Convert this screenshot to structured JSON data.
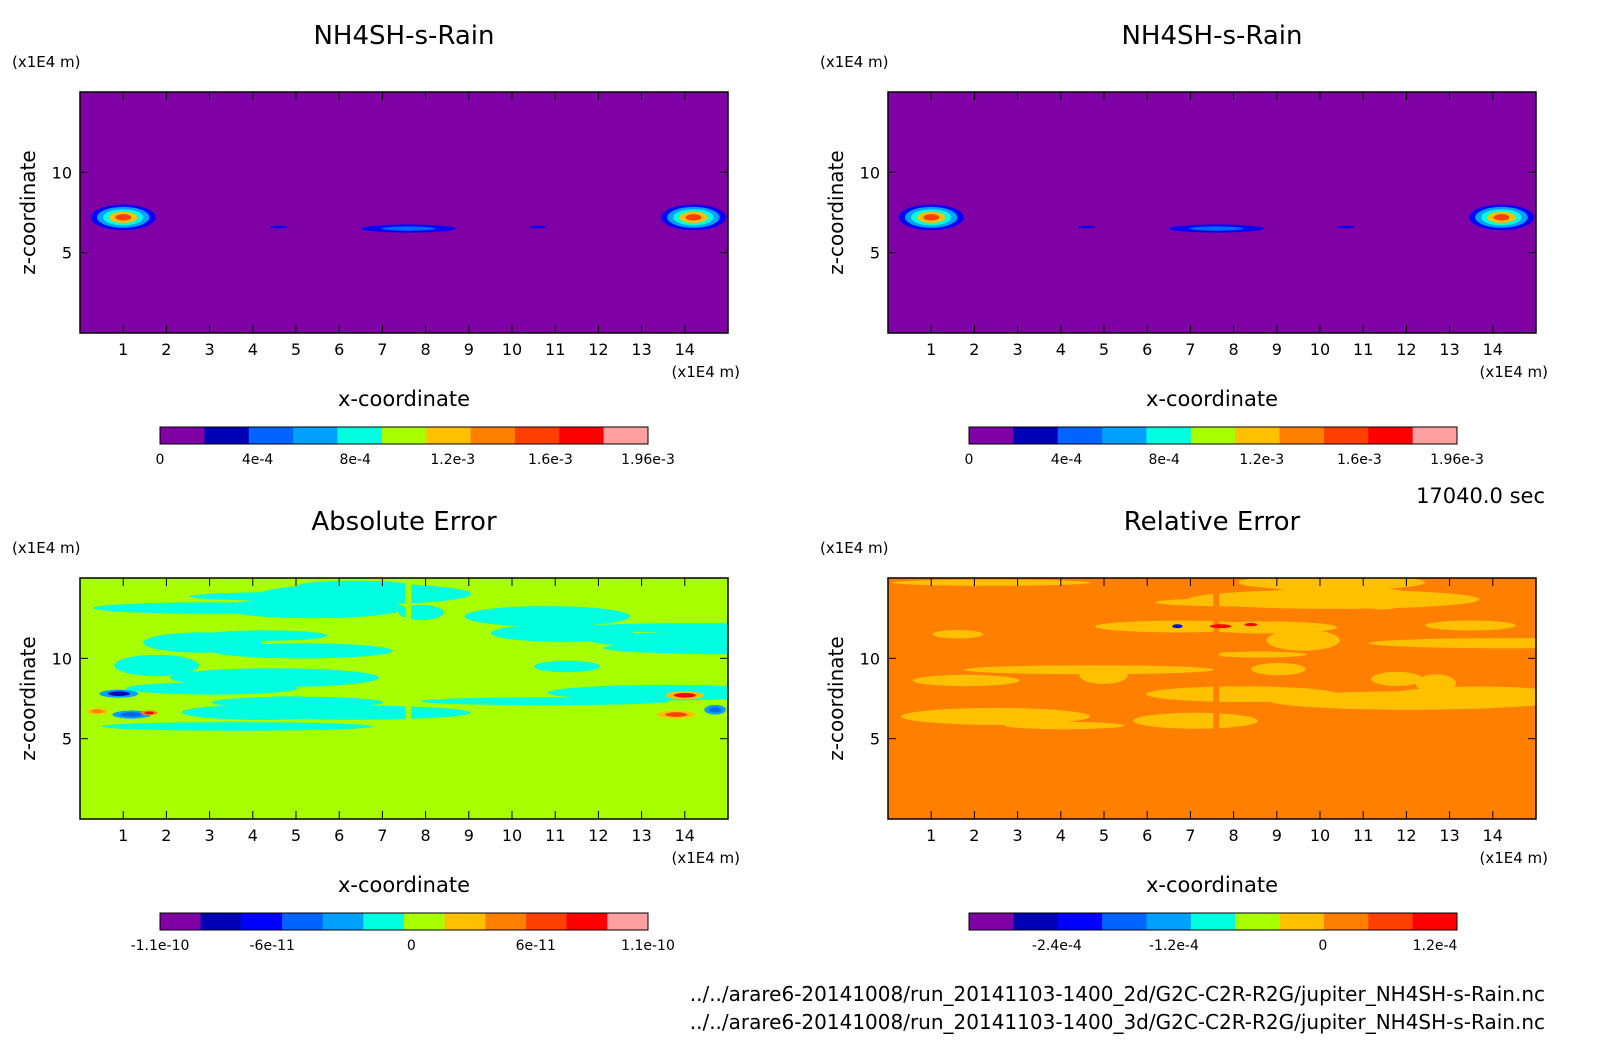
{
  "time_label": "17040.0 sec",
  "footer": {
    "line1": "../../arare6-20141008/run_20141103-1400_2d/G2C-C2R-R2G/jupiter_NH4SH-s-Rain.nc",
    "line2": "../../arare6-20141008/run_20141103-1400_3d/G2C-C2R-R2G/jupiter_NH4SH-s-Rain.nc"
  },
  "colors": {
    "purple": "#7f00a5",
    "navy": "#0000b4",
    "blue": "#0000ff",
    "mid_blue": "#0064ff",
    "sky": "#00a0ff",
    "cyan": "#00ffe0",
    "lime": "#a8ff00",
    "yellow": "#ffc000",
    "orange": "#ff8000",
    "orange_red": "#ff4000",
    "red": "#ff0000",
    "pink": "#ffa0a0"
  },
  "chart_data": [
    {
      "id": "p1",
      "type": "heatmap",
      "title": "NH4SH-s-Rain",
      "xlabel": "x-coordinate",
      "ylabel": "z-coordinate",
      "x_unit": "(x1E4 m)",
      "y_unit": "(x1E4 m)",
      "xlim": [
        0,
        15
      ],
      "ylim": [
        0,
        15
      ],
      "x_ticks": [
        1,
        2,
        3,
        4,
        5,
        6,
        7,
        8,
        9,
        10,
        11,
        12,
        13,
        14
      ],
      "y_ticks": [
        5,
        10
      ],
      "background": "purple",
      "colorbar": {
        "colors": [
          "purple",
          "navy",
          "mid_blue",
          "sky",
          "cyan",
          "lime",
          "yellow",
          "orange",
          "orange_red",
          "red",
          "pink"
        ],
        "ticks": [
          "0",
          "4e-4",
          "8e-4",
          "1.2e-3",
          "1.6e-3",
          "1.96e-3"
        ],
        "tick_pos": [
          0,
          0.2,
          0.4,
          0.6,
          0.8,
          1.0
        ]
      },
      "features": [
        {
          "x": 1.0,
          "z": 7.2,
          "rx": 0.75,
          "rz": 0.8,
          "layers": [
            "blue",
            "sky",
            "cyan",
            "yellow",
            "orange_red"
          ]
        },
        {
          "x": 14.2,
          "z": 7.2,
          "rx": 0.75,
          "rz": 0.8,
          "layers": [
            "blue",
            "sky",
            "cyan",
            "yellow",
            "orange_red"
          ]
        },
        {
          "x": 7.6,
          "z": 6.5,
          "rx": 1.1,
          "rz": 0.25,
          "layers": [
            "blue",
            "mid_blue"
          ]
        },
        {
          "x": 4.6,
          "z": 6.6,
          "rx": 0.2,
          "rz": 0.08,
          "layers": [
            "blue"
          ]
        },
        {
          "x": 10.6,
          "z": 6.6,
          "rx": 0.2,
          "rz": 0.08,
          "layers": [
            "blue"
          ]
        }
      ]
    },
    {
      "id": "p2",
      "type": "heatmap",
      "title": "NH4SH-s-Rain",
      "xlabel": "x-coordinate",
      "ylabel": "z-coordinate",
      "x_unit": "(x1E4 m)",
      "y_unit": "(x1E4 m)",
      "xlim": [
        0,
        15
      ],
      "ylim": [
        0,
        15
      ],
      "x_ticks": [
        1,
        2,
        3,
        4,
        5,
        6,
        7,
        8,
        9,
        10,
        11,
        12,
        13,
        14
      ],
      "y_ticks": [
        5,
        10
      ],
      "background": "purple",
      "colorbar": {
        "colors": [
          "purple",
          "navy",
          "mid_blue",
          "sky",
          "cyan",
          "lime",
          "yellow",
          "orange",
          "orange_red",
          "red",
          "pink"
        ],
        "ticks": [
          "0",
          "4e-4",
          "8e-4",
          "1.2e-3",
          "1.6e-3",
          "1.96e-3"
        ],
        "tick_pos": [
          0,
          0.2,
          0.4,
          0.6,
          0.8,
          1.0
        ]
      },
      "features": [
        {
          "x": 1.0,
          "z": 7.2,
          "rx": 0.75,
          "rz": 0.8,
          "layers": [
            "blue",
            "sky",
            "cyan",
            "yellow",
            "orange_red"
          ]
        },
        {
          "x": 14.2,
          "z": 7.2,
          "rx": 0.75,
          "rz": 0.8,
          "layers": [
            "blue",
            "sky",
            "cyan",
            "yellow",
            "orange_red"
          ]
        },
        {
          "x": 7.6,
          "z": 6.5,
          "rx": 1.1,
          "rz": 0.25,
          "layers": [
            "blue",
            "mid_blue"
          ]
        },
        {
          "x": 4.6,
          "z": 6.6,
          "rx": 0.2,
          "rz": 0.08,
          "layers": [
            "blue"
          ]
        },
        {
          "x": 10.6,
          "z": 6.6,
          "rx": 0.2,
          "rz": 0.08,
          "layers": [
            "blue"
          ]
        }
      ]
    },
    {
      "id": "p3",
      "type": "heatmap",
      "title": "Absolute Error",
      "xlabel": "x-coordinate",
      "ylabel": "z-coordinate",
      "x_unit": "(x1E4 m)",
      "y_unit": "(x1E4 m)",
      "xlim": [
        0,
        15
      ],
      "ylim": [
        0,
        15
      ],
      "x_ticks": [
        1,
        2,
        3,
        4,
        5,
        6,
        7,
        8,
        9,
        10,
        11,
        12,
        13,
        14
      ],
      "y_ticks": [
        5,
        10
      ],
      "background": "lime",
      "band": {
        "z_from": 5.5,
        "z_to": 15,
        "colors": [
          "lime",
          "cyan"
        ]
      },
      "colorbar": {
        "colors": [
          "purple",
          "navy",
          "blue",
          "mid_blue",
          "sky",
          "cyan",
          "lime",
          "yellow",
          "orange",
          "orange_red",
          "red",
          "pink"
        ],
        "ticks": [
          "-1.1e-10",
          "-6e-11",
          "0",
          "6e-11",
          "1.1e-10"
        ],
        "tick_pos": [
          0,
          0.23,
          0.515,
          0.77,
          1.0
        ]
      },
      "features": [
        {
          "x": 0.9,
          "z": 7.8,
          "rx": 0.45,
          "rz": 0.25,
          "layers": [
            "sky",
            "navy"
          ]
        },
        {
          "x": 1.2,
          "z": 6.5,
          "rx": 0.45,
          "rz": 0.25,
          "layers": [
            "sky",
            "mid_blue"
          ]
        },
        {
          "x": 0.4,
          "z": 6.7,
          "rx": 0.25,
          "rz": 0.2,
          "layers": [
            "yellow",
            "orange"
          ]
        },
        {
          "x": 1.6,
          "z": 6.6,
          "rx": 0.2,
          "rz": 0.15,
          "layers": [
            "orange",
            "red"
          ]
        },
        {
          "x": 14.0,
          "z": 7.7,
          "rx": 0.45,
          "rz": 0.25,
          "layers": [
            "yellow",
            "red"
          ]
        },
        {
          "x": 13.8,
          "z": 6.5,
          "rx": 0.45,
          "rz": 0.25,
          "layers": [
            "yellow",
            "orange_red"
          ]
        },
        {
          "x": 14.7,
          "z": 6.8,
          "rx": 0.25,
          "rz": 0.3,
          "layers": [
            "sky",
            "mid_blue"
          ]
        }
      ]
    },
    {
      "id": "p4",
      "type": "heatmap",
      "title": "Relative Error",
      "xlabel": "x-coordinate",
      "ylabel": "z-coordinate",
      "x_unit": "(x1E4 m)",
      "y_unit": "(x1E4 m)",
      "xlim": [
        0,
        15
      ],
      "ylim": [
        0,
        15
      ],
      "x_ticks": [
        1,
        2,
        3,
        4,
        5,
        6,
        7,
        8,
        9,
        10,
        11,
        12,
        13,
        14
      ],
      "y_ticks": [
        5,
        10
      ],
      "background": "orange",
      "band": {
        "z_from": 5.5,
        "z_to": 15,
        "colors": [
          "orange",
          "yellow"
        ]
      },
      "colorbar": {
        "colors": [
          "purple",
          "navy",
          "blue",
          "mid_blue",
          "sky",
          "cyan",
          "lime",
          "yellow",
          "orange",
          "orange_red",
          "red"
        ],
        "ticks": [
          "-2.4e-4",
          "-1.2e-4",
          "0",
          "1.2e-4"
        ],
        "tick_pos": [
          0.18,
          0.42,
          0.725,
          0.955
        ]
      },
      "features": [
        {
          "x": 6.7,
          "z": 12.0,
          "rx": 0.12,
          "rz": 0.12,
          "layers": [
            "blue"
          ]
        },
        {
          "x": 7.7,
          "z": 12.0,
          "rx": 0.25,
          "rz": 0.12,
          "layers": [
            "red"
          ]
        },
        {
          "x": 8.4,
          "z": 12.1,
          "rx": 0.15,
          "rz": 0.1,
          "layers": [
            "red"
          ]
        }
      ]
    }
  ]
}
